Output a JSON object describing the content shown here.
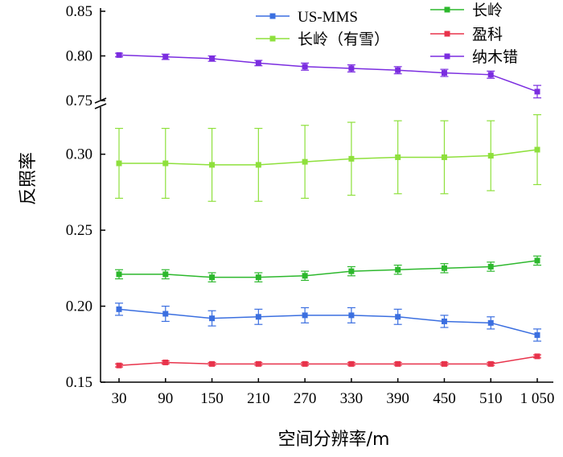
{
  "chart_data": {
    "type": "line",
    "xlabel": "空间分辨率/m",
    "ylabel": "反照率",
    "categories": [
      "30",
      "90",
      "150",
      "210",
      "270",
      "330",
      "390",
      "450",
      "510",
      "1 050"
    ],
    "y_axis_break": {
      "lower_range": [
        0.15,
        0.33
      ],
      "upper_range": [
        0.75,
        0.85
      ]
    },
    "y_ticks_lower": [
      "0.15",
      "0.20",
      "0.25",
      "0.30"
    ],
    "y_ticks_upper": [
      "0.75",
      "0.80",
      "0.85"
    ],
    "legend_placement": "top-right",
    "series": [
      {
        "name": "US-MMS",
        "color": "#3b6fe0",
        "marker": "square",
        "values": [
          0.198,
          0.195,
          0.192,
          0.193,
          0.194,
          0.194,
          0.193,
          0.19,
          0.189,
          0.181
        ],
        "errors": [
          0.004,
          0.005,
          0.005,
          0.005,
          0.005,
          0.005,
          0.005,
          0.004,
          0.004,
          0.004
        ]
      },
      {
        "name": "长岭（有雪）",
        "color": "#8ee03c",
        "marker": "square",
        "values": [
          0.294,
          0.294,
          0.293,
          0.293,
          0.295,
          0.297,
          0.298,
          0.298,
          0.299,
          0.303
        ],
        "errors": [
          0.023,
          0.023,
          0.024,
          0.024,
          0.024,
          0.024,
          0.024,
          0.024,
          0.023,
          0.023
        ]
      },
      {
        "name": "长岭",
        "color": "#2db82d",
        "marker": "square",
        "values": [
          0.221,
          0.221,
          0.219,
          0.219,
          0.22,
          0.223,
          0.224,
          0.225,
          0.226,
          0.23
        ],
        "errors": [
          0.003,
          0.003,
          0.003,
          0.003,
          0.003,
          0.003,
          0.003,
          0.003,
          0.003,
          0.003
        ]
      },
      {
        "name": "盈科",
        "color": "#e8334b",
        "marker": "square",
        "values": [
          0.161,
          0.163,
          0.162,
          0.162,
          0.162,
          0.162,
          0.162,
          0.162,
          0.162,
          0.167
        ],
        "errors": [
          0.001,
          0.001,
          0.001,
          0.001,
          0.001,
          0.001,
          0.001,
          0.001,
          0.001,
          0.001
        ]
      },
      {
        "name": "纳木错",
        "color": "#7b2de0",
        "marker": "square",
        "values": [
          0.801,
          0.799,
          0.797,
          0.792,
          0.788,
          0.786,
          0.784,
          0.781,
          0.779,
          0.76
        ],
        "errors": [
          0.002,
          0.003,
          0.003,
          0.003,
          0.004,
          0.004,
          0.004,
          0.004,
          0.004,
          0.007
        ]
      }
    ]
  }
}
